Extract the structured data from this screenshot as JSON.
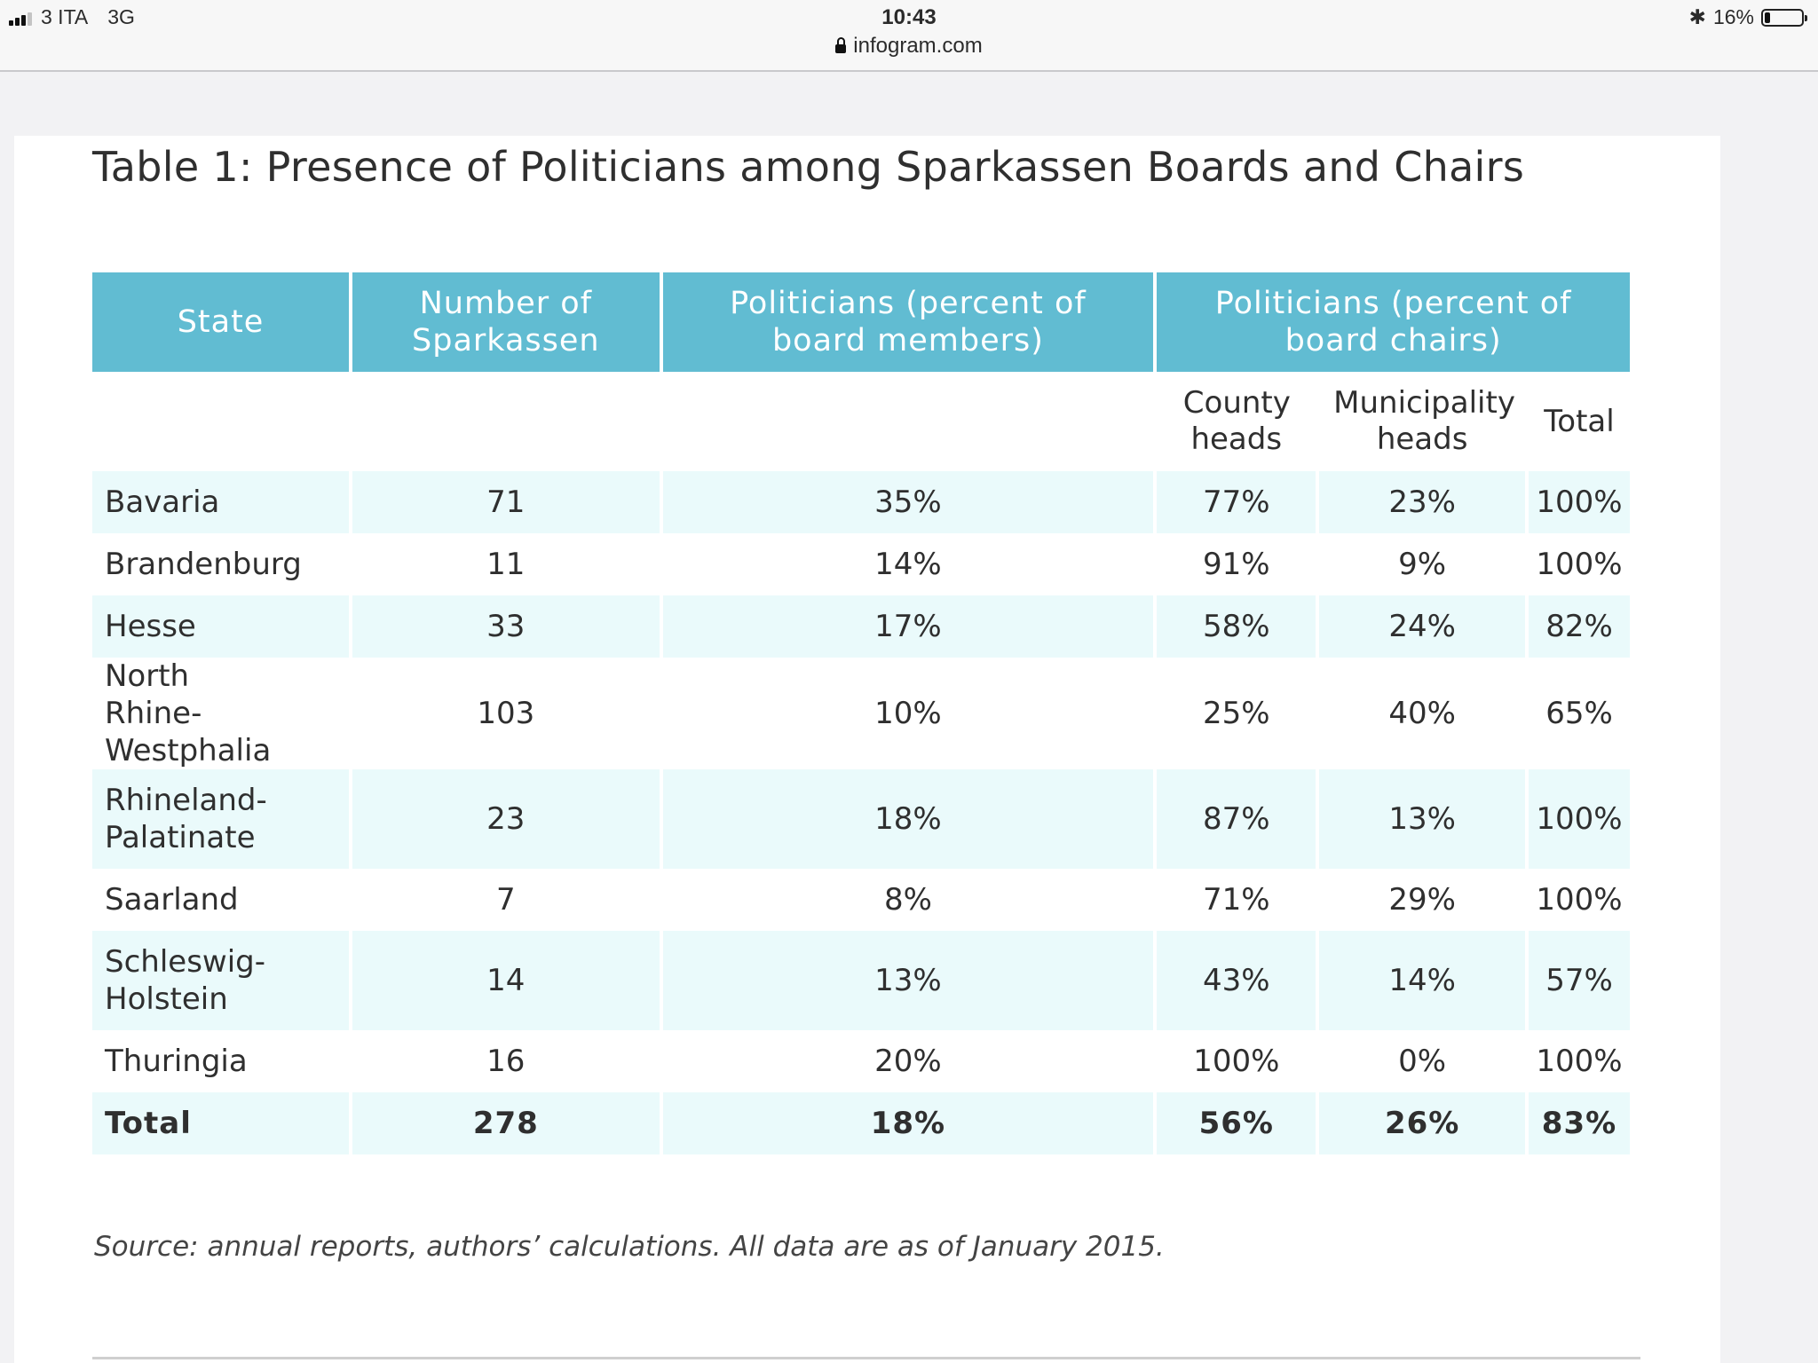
{
  "status_bar": {
    "carrier": "3 ITA",
    "network": "3G",
    "time": "10:43",
    "url": "infogram.com",
    "battery": "16%",
    "battery_level": 0.16
  },
  "title": "Table 1: Presence of Politicians among Sparkassen Boards and Chairs",
  "table": {
    "headers": {
      "state": "State",
      "number": "Number of Sparkassen",
      "members": "Politicians (percent of board members)",
      "chairs": "Politicians (percent of board chairs)"
    },
    "subheaders": {
      "county": "County heads",
      "municipality": "Municipality heads",
      "total": "Total"
    },
    "rows": [
      {
        "state": "Bavaria",
        "number": "71",
        "members": "35%",
        "county": "77%",
        "municipality": "23%",
        "total": "100%"
      },
      {
        "state": "Brandenburg",
        "number": "11",
        "members": "14%",
        "county": "91%",
        "municipality": "9%",
        "total": "100%"
      },
      {
        "state": "Hesse",
        "number": "33",
        "members": "17%",
        "county": "58%",
        "municipality": "24%",
        "total": "82%"
      },
      {
        "state": "North Rhine-Westphalia",
        "number": "103",
        "members": "10%",
        "county": "25%",
        "municipality": "40%",
        "total": "65%"
      },
      {
        "state": "Rhineland-Palatinate",
        "number": "23",
        "members": "18%",
        "county": "87%",
        "municipality": "13%",
        "total": "100%"
      },
      {
        "state": "Saarland",
        "number": "7",
        "members": "8%",
        "county": "71%",
        "municipality": "29%",
        "total": "100%"
      },
      {
        "state": "Schleswig-Holstein",
        "number": "14",
        "members": "13%",
        "county": "43%",
        "municipality": "14%",
        "total": "57%"
      },
      {
        "state": "Thuringia",
        "number": "16",
        "members": "20%",
        "county": "100%",
        "municipality": "0%",
        "total": "100%"
      }
    ],
    "total_row": {
      "state": "Total",
      "number": "278",
      "members": "18%",
      "county": "56%",
      "municipality": "26%",
      "total": "83%"
    }
  },
  "source": "Source: annual reports, authors’ calculations. All data are as of January 2015.",
  "colors": {
    "header": "#61bcd2",
    "row_shade": "#eafafb"
  }
}
